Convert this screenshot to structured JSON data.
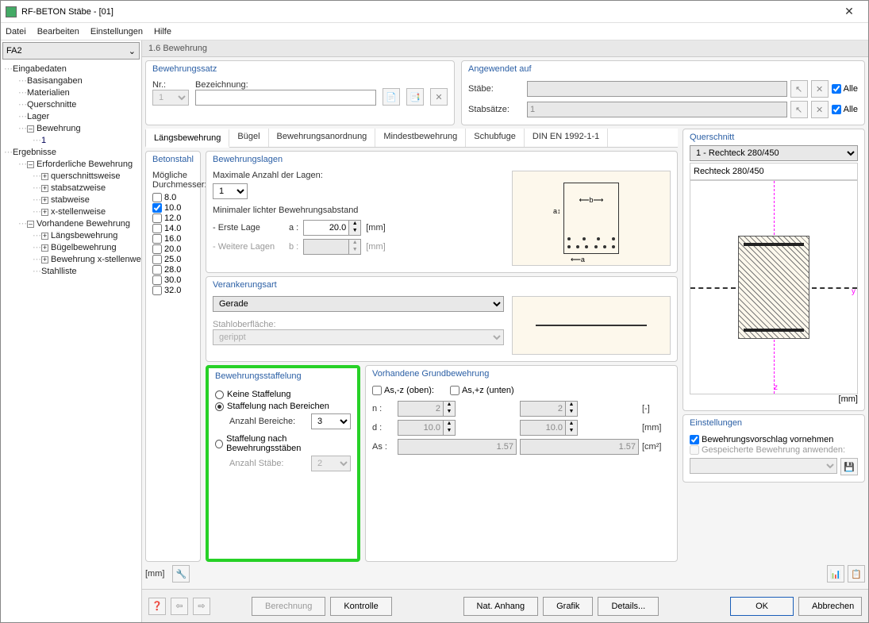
{
  "window": {
    "title": "RF-BETON Stäbe - [01]"
  },
  "menu": [
    "Datei",
    "Bearbeiten",
    "Einstellungen",
    "Hilfe"
  ],
  "sidebar": {
    "selector": "FA2",
    "tree": {
      "eingabedaten": "Eingabedaten",
      "basisangaben": "Basisangaben",
      "materialien": "Materialien",
      "querschnitte": "Querschnitte",
      "lager": "Lager",
      "bewehrung": "Bewehrung",
      "bewehrung_1": "1",
      "ergebnisse": "Ergebnisse",
      "erf_bewehrung": "Erforderliche Bewehrung",
      "querschnittsweise": "querschnittsweise",
      "stabsatzweise": "stabsatzweise",
      "stabweise": "stabweise",
      "xstellenweise": "x-stellenweise",
      "vorh_bewehrung": "Vorhandene Bewehrung",
      "langsbewehrung": "Längsbewehrung",
      "bugelbewehrung": "Bügelbewehrung",
      "bew_xstellen": "Bewehrung x-stellenweise",
      "stahlliste": "Stahlliste"
    }
  },
  "section_title": "1.6 Bewehrung",
  "bewehrungssatz": {
    "title": "Bewehrungssatz",
    "nr_label": "Nr.:",
    "nr_value": "1",
    "bezeichnung_label": "Bezeichnung:",
    "bezeichnung_value": ""
  },
  "angewendet": {
    "title": "Angewendet auf",
    "stabe_label": "Stäbe:",
    "stabe_value": "",
    "stabsatze_label": "Stabsätze:",
    "stabsatze_value": "1",
    "alle": "Alle"
  },
  "tabs": [
    "Längsbewehrung",
    "Bügel",
    "Bewehrungsanordnung",
    "Mindestbewehrung",
    "Schubfuge",
    "DIN EN 1992-1-1"
  ],
  "betonstahl": {
    "title": "Betonstahl",
    "label": "Mögliche Durchmesser:",
    "diameters": [
      "8.0",
      "10.0",
      "12.0",
      "14.0",
      "16.0",
      "20.0",
      "25.0",
      "28.0",
      "30.0",
      "32.0"
    ],
    "checked": [
      false,
      true,
      false,
      false,
      false,
      false,
      false,
      false,
      false,
      false
    ]
  },
  "bewehrungslagen": {
    "title": "Bewehrungslagen",
    "max_label": "Maximale Anzahl der Lagen:",
    "max_value": "1",
    "min_label": "Minimaler lichter Bewehrungsabstand",
    "erste_lage": "- Erste Lage",
    "a_label": "a :",
    "a_value": "20.0",
    "weitere": "- Weitere Lagen",
    "b_label": "b :",
    "b_value": "",
    "unit": "[mm]"
  },
  "verankerung": {
    "title": "Verankerungsart",
    "value": "Gerade",
    "oberflaeche_label": "Stahloberfläche:",
    "oberflaeche_value": "gerippt"
  },
  "staffelung": {
    "title": "Bewehrungsstaffelung",
    "opt1": "Keine Staffelung",
    "opt2": "Staffelung nach Bereichen",
    "anzahl_bereiche_label": "Anzahl Bereiche:",
    "anzahl_bereiche": "3",
    "opt3": "Staffelung nach Bewehrungsstäben",
    "anzahl_stabe_label": "Anzahl Stäbe:",
    "anzahl_stabe": "2"
  },
  "grundbewehrung": {
    "title": "Vorhandene Grundbewehrung",
    "oben": "As,-z (oben):",
    "unten": "As,+z (unten)",
    "n_label": "n :",
    "n1": "2",
    "n2": "2",
    "n_unit": "[-]",
    "d_label": "d :",
    "d1": "10.0",
    "d2": "10.0",
    "d_unit": "[mm]",
    "as_label": "As :",
    "as1": "1.57",
    "as2": "1.57",
    "as_unit": "[cm²]"
  },
  "querschnitt": {
    "title": "Querschnitt",
    "select": "1 - Rechteck 280/450",
    "name": "Rechteck 280/450",
    "unit": "[mm]"
  },
  "einstellungen": {
    "title": "Einstellungen",
    "opt1": "Bewehrungsvorschlag vornehmen",
    "opt2": "Gespeicherte Bewehrung anwenden:"
  },
  "unit_mm": "[mm]",
  "footer": {
    "berechnung": "Berechnung",
    "kontrolle": "Kontrolle",
    "nat_anhang": "Nat. Anhang",
    "grafik": "Grafik",
    "details": "Details...",
    "ok": "OK",
    "abbrechen": "Abbrechen"
  }
}
